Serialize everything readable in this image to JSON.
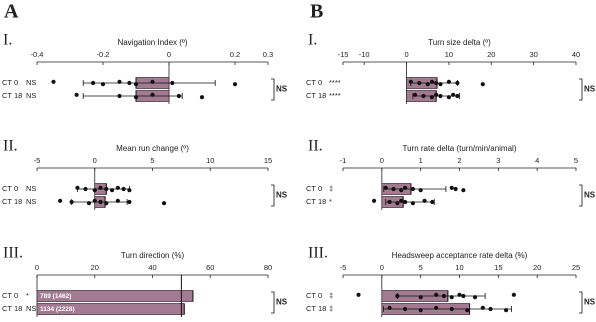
{
  "figure_letters": [
    "A",
    "B"
  ],
  "chart_data": [
    {
      "type": "bar",
      "panel": "I.",
      "title": "Navigation Index (º)",
      "categories": [
        "CT 0",
        "CT 18"
      ],
      "significance": [
        "NS",
        "NS"
      ],
      "comparison": "NS",
      "values": [
        -0.1,
        -0.1
      ],
      "errors": [
        [
          -0.26,
          0.14
        ],
        [
          -0.26,
          0.04
        ]
      ],
      "points": [
        [
          -0.35,
          -0.23,
          -0.2,
          -0.15,
          -0.12,
          -0.1,
          -0.05,
          0.01,
          0.2
        ],
        [
          -0.28,
          -0.15,
          -0.1,
          -0.05,
          0.03,
          0.1
        ]
      ],
      "color": "#a27b92",
      "xlim": [
        -0.4,
        0.3
      ],
      "xticks": [
        -0.4,
        -0.2,
        0,
        0.2,
        0.3
      ]
    },
    {
      "type": "bar",
      "panel": "II.",
      "title": "Mean run change (º)",
      "categories": [
        "CT 0",
        "CT 18"
      ],
      "significance": [
        "NS",
        "NS"
      ],
      "comparison": "NS",
      "values": [
        1,
        0.9
      ],
      "errors": [
        [
          -1.5,
          3
        ],
        [
          -2,
          2.8
        ]
      ],
      "points": [
        [
          -1.5,
          -0.8,
          0,
          0.5,
          1,
          1.5,
          2,
          2.5,
          3
        ],
        [
          -3,
          -2,
          -0.5,
          0,
          0.5,
          1,
          2,
          3,
          6
        ]
      ],
      "color": "#a27b92",
      "xlim": [
        -5,
        15
      ],
      "xticks": [
        -5,
        0,
        5,
        10,
        15
      ]
    },
    {
      "type": "bar",
      "panel": "III.",
      "title": "Turn direction (%)",
      "categories": [
        "CT 0",
        "CT 18"
      ],
      "significance": [
        "*",
        "NS"
      ],
      "comparison": "NS",
      "values": [
        54,
        51
      ],
      "bar_labels": [
        "789 (1462)",
        "1134 (2228)"
      ],
      "reference": 50,
      "color": "#a27b92",
      "xlim": [
        0,
        80
      ],
      "xticks": [
        0,
        20,
        40,
        60,
        80
      ]
    },
    {
      "type": "bar",
      "panel": "I.",
      "title": "Turn size delta (º)",
      "categories": [
        "CT 0",
        "CT 18"
      ],
      "significance": [
        "****",
        "****"
      ],
      "comparison": "NS",
      "values": [
        7.2,
        7
      ],
      "errors": [
        [
          1,
          12
        ],
        [
          1.5,
          12.5
        ]
      ],
      "points": [
        [
          1,
          3,
          5,
          6,
          7,
          8,
          10,
          12,
          18
        ],
        [
          2,
          4,
          6,
          7,
          8,
          10,
          11,
          12
        ]
      ],
      "color": "#a27b92",
      "xlim": [
        -15,
        40
      ],
      "xticks": [
        -15,
        -10,
        0,
        10,
        20,
        30,
        40
      ]
    },
    {
      "type": "bar",
      "panel": "II.",
      "title": "Turn rate delta (turn/min/animal)",
      "categories": [
        "CT 0",
        "CT 18"
      ],
      "significance": [
        "‡",
        "*"
      ],
      "comparison": "NS",
      "values": [
        0.75,
        0.55
      ],
      "errors": [
        [
          0.05,
          1.65
        ],
        [
          0.1,
          1.35
        ]
      ],
      "points": [
        [
          0.1,
          0.3,
          0.5,
          0.6,
          0.8,
          1,
          1.8,
          1.9,
          2.1
        ],
        [
          -0.2,
          0.2,
          0.4,
          0.5,
          0.6,
          0.8,
          1.1,
          1.3
        ]
      ],
      "color": "#a27b92",
      "xlim": [
        -1,
        5
      ],
      "xticks": [
        -1,
        0,
        1,
        2,
        3,
        4,
        5
      ]
    },
    {
      "type": "bar",
      "panel": "III.",
      "title": "Headsweep acceptance rate delta (%)",
      "categories": [
        "CT 0",
        "CT 18"
      ],
      "significance": [
        "‡",
        "‡"
      ],
      "comparison": "NS",
      "values": [
        8.5,
        11.3
      ],
      "errors": [
        [
          2,
          13.3
        ],
        [
          0.2,
          16.7
        ]
      ],
      "points": [
        [
          -3,
          2,
          5,
          7,
          8,
          9,
          10,
          10.5,
          12,
          17
        ],
        [
          1,
          3,
          5,
          7,
          9,
          11,
          13,
          14,
          16
        ]
      ],
      "color": "#a27b92",
      "xlim": [
        -5,
        25
      ],
      "xticks": [
        -5,
        0,
        5,
        10,
        15,
        20,
        25
      ]
    }
  ]
}
